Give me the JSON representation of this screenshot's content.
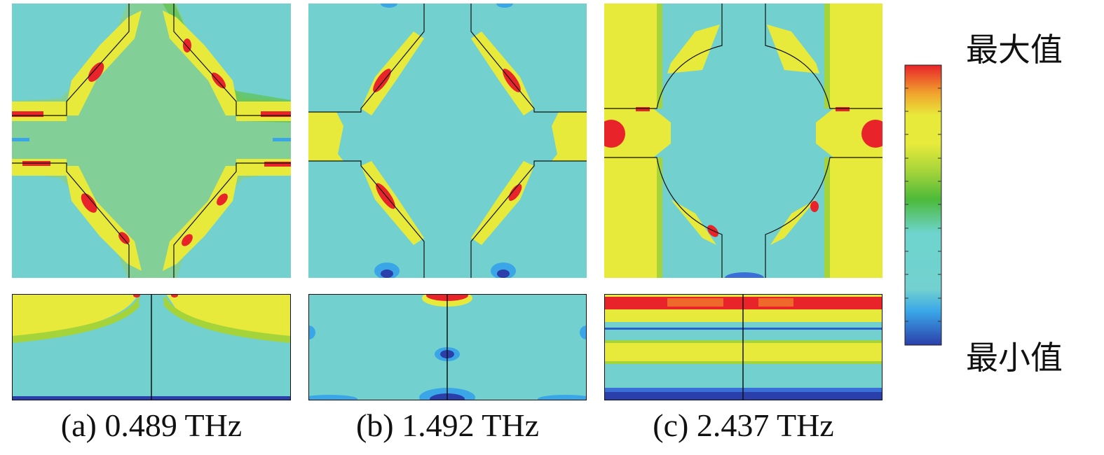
{
  "figure": {
    "captions": [
      "(a) 0.489 THz",
      "(b) 1.492 THz",
      "(c) 2.437 THz"
    ]
  },
  "legend": {
    "max_label": "最大值",
    "min_label": "最小值",
    "colormap": [
      "#2b3faa",
      "#3aa6e8",
      "#72d1cf",
      "#6ed4cd",
      "#4cba3a",
      "#a4d43a",
      "#e8ea3b",
      "#f0a22c",
      "#e8242a"
    ]
  },
  "colors": {
    "background_field": "#72d1cf",
    "low": "#2b3faa",
    "mid_low": "#3aa6e8",
    "mid": "#5bbf3a",
    "mid_high": "#e8ea3b",
    "high": "#e8242a"
  }
}
